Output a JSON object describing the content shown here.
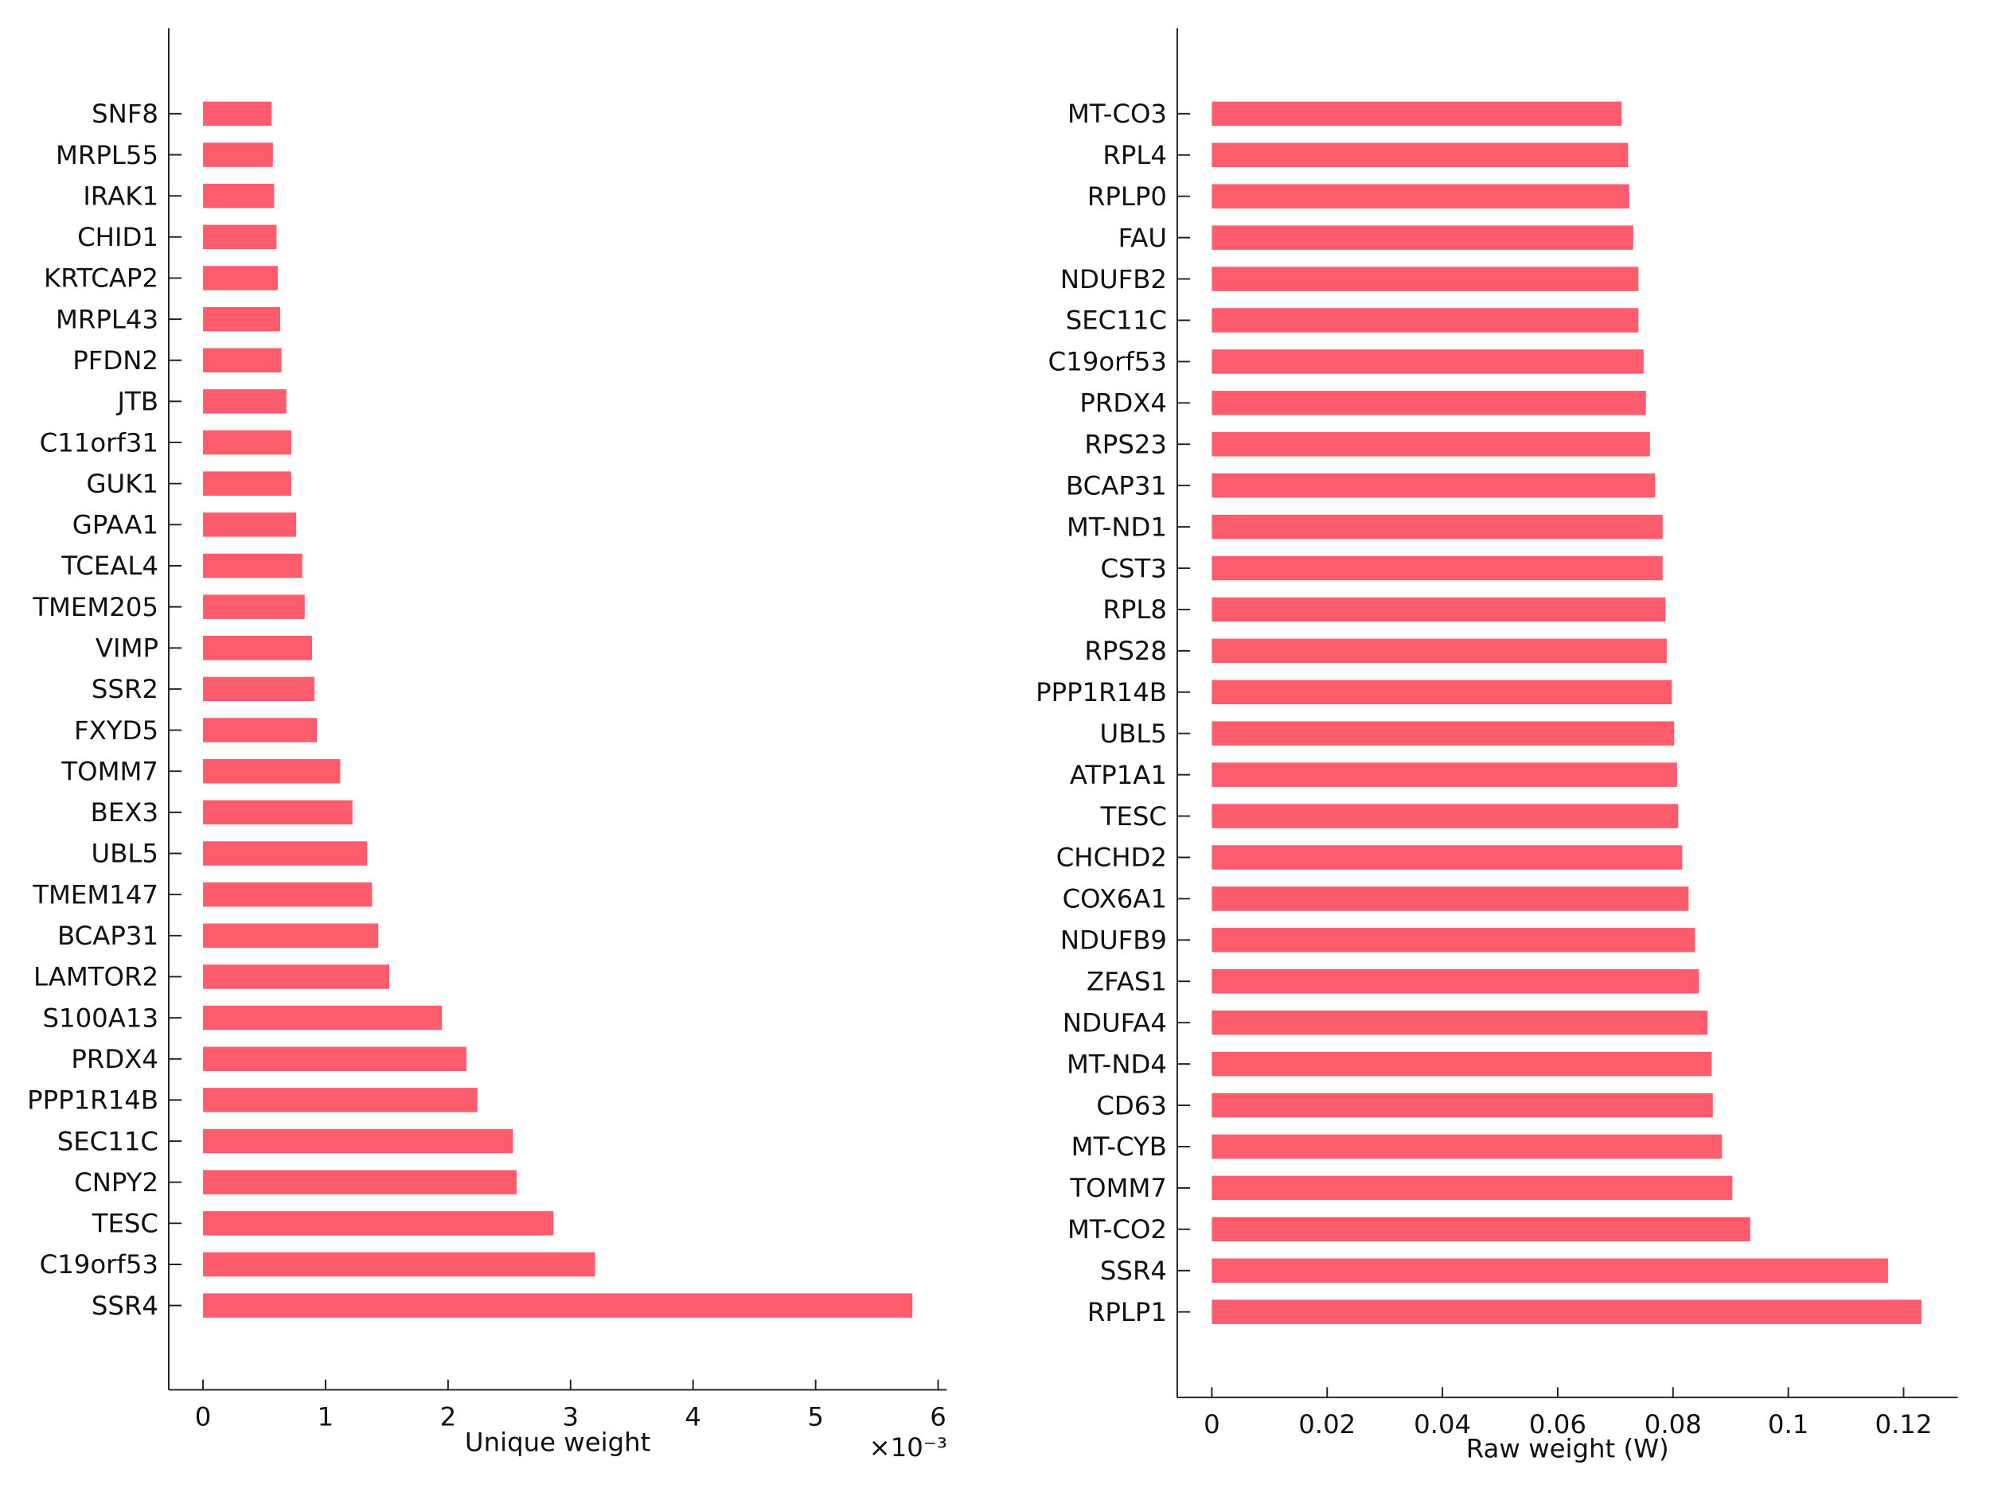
{
  "chart_data": [
    {
      "type": "barh",
      "xlabel": "Unique weight",
      "x_multiplier": "×10⁻³",
      "categories": [
        "SNF8",
        "MRPL55",
        "IRAK1",
        "CHID1",
        "KRTCAP2",
        "MRPL43",
        "PFDN2",
        "JTB",
        "C11orf31",
        "GUK1",
        "GPAA1",
        "TCEAL4",
        "TMEM205",
        "VIMP",
        "SSR2",
        "FXYD5",
        "TOMM7",
        "BEX3",
        "UBL5",
        "TMEM147",
        "BCAP31",
        "LAMTOR2",
        "S100A13",
        "PRDX4",
        "PPP1R14B",
        "SEC11C",
        "CNPY2",
        "TESC",
        "C19orf53",
        "SSR4"
      ],
      "values": [
        0.56,
        0.57,
        0.58,
        0.6,
        0.61,
        0.63,
        0.64,
        0.68,
        0.72,
        0.72,
        0.76,
        0.81,
        0.83,
        0.89,
        0.91,
        0.93,
        1.12,
        1.22,
        1.34,
        1.38,
        1.43,
        1.52,
        1.95,
        2.15,
        2.24,
        2.53,
        2.56,
        2.86,
        3.2,
        5.79
      ],
      "color": "#fd5c6c",
      "xlim": [
        -0.28,
        6.07
      ],
      "xticks": [
        0,
        1,
        2,
        3,
        4,
        5,
        6
      ]
    },
    {
      "type": "barh",
      "xlabel": "Raw weight (W)",
      "categories": [
        "MT-CO3",
        "RPL4",
        "RPLP0",
        "FAU",
        "NDUFB2",
        "SEC11C",
        "C19orf53",
        "PRDX4",
        "RPS23",
        "BCAP31",
        "MT-ND1",
        "CST3",
        "RPL8",
        "RPS28",
        "PPP1R14B",
        "UBL5",
        "ATP1A1",
        "TESC",
        "CHCHD2",
        "COX6A1",
        "NDUFB9",
        "ZFAS1",
        "NDUFA4",
        "MT-ND4",
        "CD63",
        "MT-CYB",
        "TOMM7",
        "MT-CO2",
        "SSR4",
        "RPLP1"
      ],
      "values": [
        0.0711,
        0.0722,
        0.0724,
        0.0731,
        0.074,
        0.074,
        0.0749,
        0.0753,
        0.076,
        0.0769,
        0.0782,
        0.0782,
        0.0787,
        0.0789,
        0.0798,
        0.0802,
        0.0807,
        0.0809,
        0.0816,
        0.0827,
        0.0838,
        0.0845,
        0.086,
        0.0867,
        0.0869,
        0.0885,
        0.0903,
        0.0934,
        0.1173,
        0.1231
      ],
      "color": "#fd5c6c",
      "xlim": [
        -0.006,
        0.1294
      ],
      "xticks": [
        0,
        0.02,
        0.04,
        0.06,
        0.08,
        0.1,
        0.12
      ]
    }
  ]
}
